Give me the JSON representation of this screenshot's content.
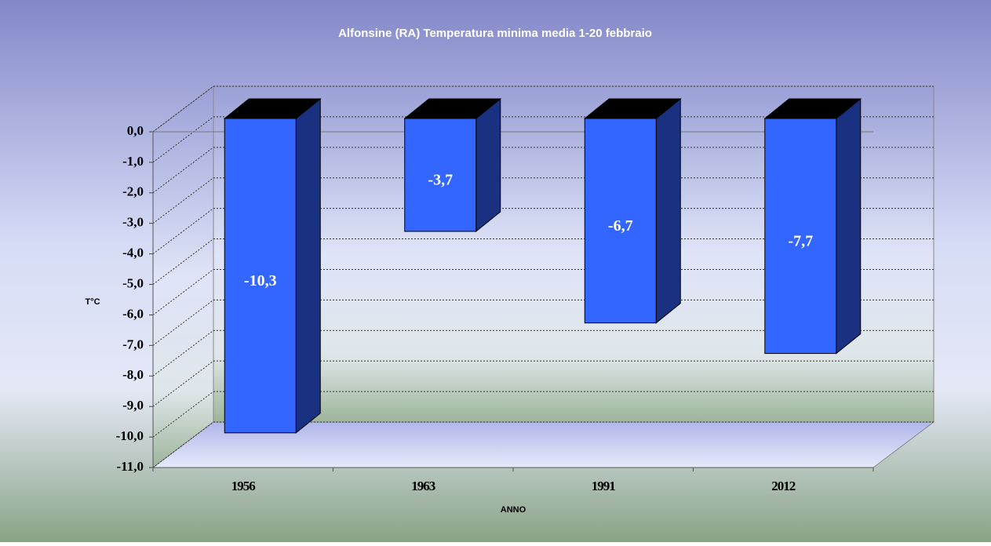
{
  "chart_data": {
    "type": "bar3d",
    "title": "Alfonsine (RA) Temperatura minima media 1-20 febbraio",
    "x_label": "ANNO",
    "y_label": "T°C",
    "categories": [
      "1956",
      "1963",
      "1991",
      "2012"
    ],
    "values": [
      -10.3,
      -3.7,
      -6.7,
      -7.7
    ],
    "value_labels": [
      "-10,3",
      "-3,7",
      "-6,7",
      "-7,7"
    ],
    "color": "#3366ff",
    "ylim": [
      -11,
      0
    ],
    "yticks": [
      {
        "value": 0,
        "label": "0,0"
      },
      {
        "value": -1,
        "label": "-1,0"
      },
      {
        "value": -2,
        "label": "-2,0"
      },
      {
        "value": -3,
        "label": "-3,0"
      },
      {
        "value": -4,
        "label": "-4,0"
      },
      {
        "value": -5,
        "label": "-5,0"
      },
      {
        "value": -6,
        "label": "-6,0"
      },
      {
        "value": -7,
        "label": "-7,0"
      },
      {
        "value": -8,
        "label": "-8,0"
      },
      {
        "value": -9,
        "label": "-9,0"
      },
      {
        "value": -10,
        "label": "-10,0"
      },
      {
        "value": -11,
        "label": "-11,0"
      }
    ],
    "grid": true
  }
}
